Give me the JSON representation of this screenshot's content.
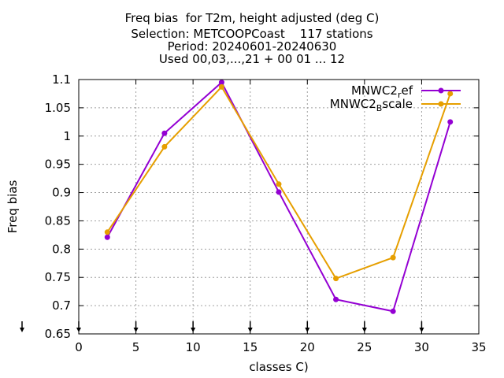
{
  "chart_data": {
    "type": "line",
    "title_lines": [
      "Freq bias  for T2m, height adjusted (deg C)",
      "Selection: METCOOPCoast    117 stations",
      "Period: 20240601-20240630",
      "Used 00,03,...,21 + 00 01 ... 12"
    ],
    "xlabel": "classes C)",
    "ylabel": "Freq bias",
    "xlim": [
      0,
      35
    ],
    "ylim": [
      0.65,
      1.1
    ],
    "xticks": [
      0,
      5,
      10,
      15,
      20,
      25,
      30,
      35
    ],
    "yticks": [
      0.65,
      0.7,
      0.75,
      0.8,
      0.85,
      0.9,
      0.95,
      1,
      1.05,
      1.1
    ],
    "xtick_labels": [
      "0",
      "5",
      "10",
      "15",
      "20",
      "25",
      "30",
      "35"
    ],
    "ytick_labels": [
      "0.65",
      "0.7",
      "0.75",
      "0.8",
      "0.85",
      "0.9",
      "0.95",
      "1",
      "1.05",
      "1.1"
    ],
    "grid": true,
    "legend_position": "top-right",
    "x": [
      2.5,
      7.5,
      12.5,
      17.5,
      22.5,
      27.5,
      32.5
    ],
    "series": [
      {
        "name_base": "MNWC2",
        "name_sub": "r",
        "name_rest": "ef",
        "color": "#9400d3",
        "values": [
          0.821,
          1.005,
          1.095,
          0.901,
          0.711,
          0.69,
          1.025
        ]
      },
      {
        "name_base": "MNWC2",
        "name_sub": "B",
        "name_rest": "scale",
        "color": "#e69f00",
        "values": [
          0.83,
          0.981,
          1.087,
          0.915,
          0.748,
          0.785,
          1.075
        ]
      }
    ],
    "baseline_arrows_x": [
      0,
      5,
      10,
      15,
      20,
      25,
      30
    ]
  }
}
